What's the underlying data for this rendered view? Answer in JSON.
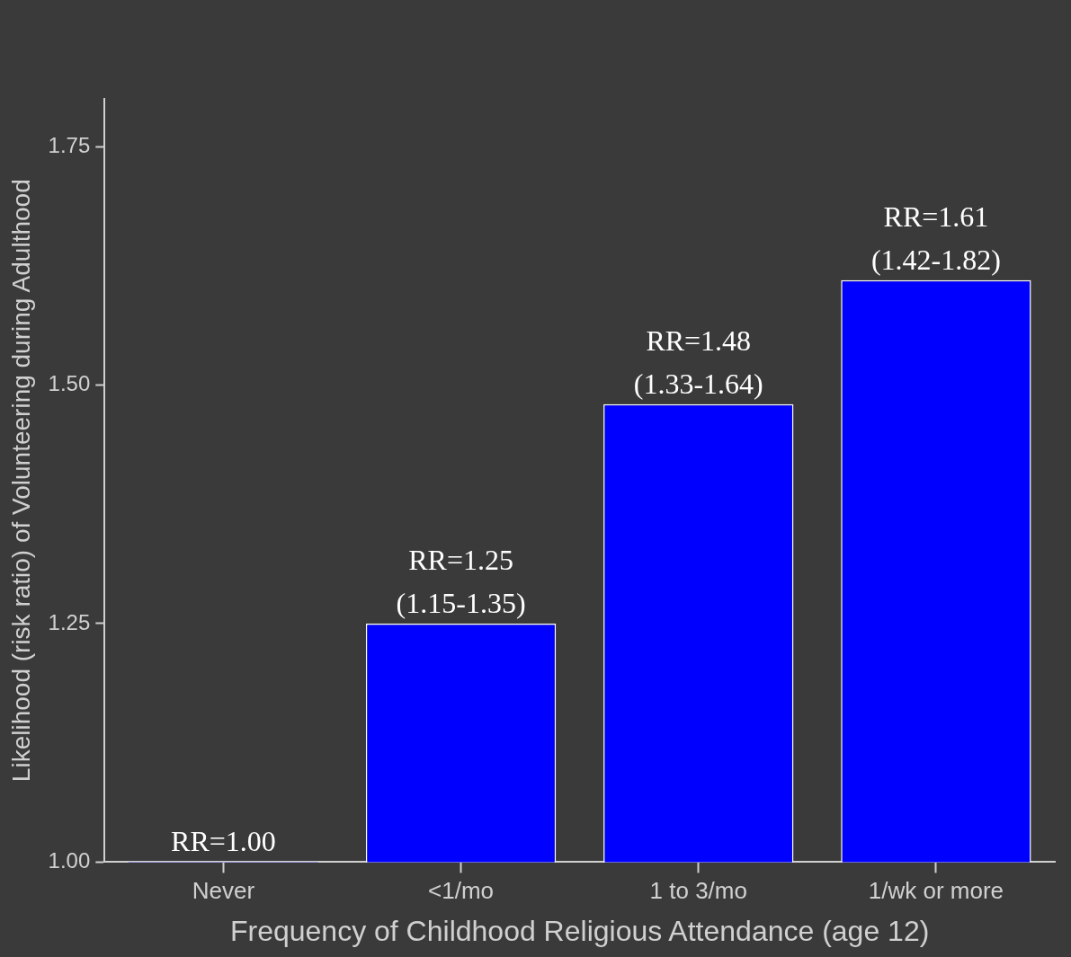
{
  "chart_data": {
    "type": "bar",
    "xlabel": "Frequency of Childhood Religious Attendance (age 12)",
    "ylabel": "Likelihood (risk ratio) of Volunteering during Adulthood",
    "categories": [
      "Never",
      "<1/mo",
      "1 to 3/mo",
      "1/wk or more"
    ],
    "values": [
      1.0,
      1.25,
      1.48,
      1.61
    ],
    "color": "#0000ff",
    "value_labels": [
      "RR=1.00",
      "RR=1.25\n(1.15-1.35)",
      "RR=1.48\n(1.33-1.64)",
      "RR=1.61\n(1.42-1.82)"
    ],
    "ylim": [
      1.0,
      1.8
    ],
    "yticks": [
      {
        "value": 1,
        "label": "1.00"
      },
      {
        "value": 1.25,
        "label": "1.25"
      },
      {
        "value": 1.5,
        "label": "1.50"
      },
      {
        "value": 1.75,
        "label": "1.75"
      }
    ]
  }
}
